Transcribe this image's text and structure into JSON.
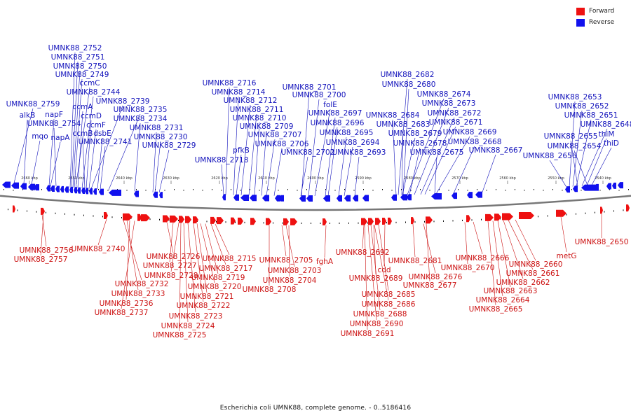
{
  "legend": [
    {
      "label": "Forward",
      "color": "#ee1111"
    },
    {
      "label": "Reverse",
      "color": "#1111ee"
    }
  ],
  "caption": "Escherichia coli UMNK88, complete genome. - 0..5186416",
  "colors": {
    "forward": "#ee1111",
    "reverse": "#1111ee",
    "backbone": "#777777",
    "label_forward": "#cc1111",
    "label_reverse": "#1111bb"
  },
  "scale_labels": [
    "2660 kbp",
    "2650 kbp",
    "2640 kbp",
    "2630 kbp",
    "2620 kbp",
    "2610 kbp",
    "2600 kbp",
    "2590 kbp",
    "2580 kbp",
    "2570 kbp",
    "2560 kbp",
    "2550 kbp",
    "2540 kbp"
  ],
  "reverse_labels": [
    "UMNK88_2752",
    "UMNK88_2751",
    "UMNK88_2750",
    "UMNK88_2749",
    "ccmC",
    "ccmA",
    "UMNK88_2744",
    "ccmD",
    "UMNK88_2739",
    "UMNK88_2759",
    "ccmF",
    "UMNK88_2735",
    "napF",
    "alkB",
    "UMNK88_2754",
    "UMNK88_2734",
    "ccmB",
    "dsbE",
    "UMNK88_2731",
    "mqo",
    "napA",
    "UMNK88_2741",
    "UMNK88_2730",
    "UMNK88_2729",
    "UMNK88_2716",
    "UMNK88_2714",
    "UMNK88_2712",
    "UMNK88_2711",
    "UMNK88_2710",
    "UMNK88_2709",
    "UMNK88_2707",
    "UMNK88_2706",
    "pfkB",
    "UMNK88_2718",
    "UMNK88_2701",
    "UMNK88_2700",
    "folE",
    "UMNK88_2697",
    "UMNK88_2696",
    "UMNK88_2695",
    "UMNK88_2694",
    "UMNK88_2702",
    "UMNK88_2693",
    "UMNK88_2682",
    "UMNK88_2680",
    "UMNK88_2674",
    "UMNK88_2673",
    "UMNK88_2684",
    "UMNK88_2672",
    "UMNK88_2683",
    "UMNK88_2671",
    "UMNK88_2679",
    "UMNK88_2669",
    "UMNK88_2678",
    "UMNK88_2668",
    "UMNK88_2675",
    "UMNK88_2667",
    "UMNK88_2653",
    "UMNK88_2652",
    "UMNK88_2651",
    "UMNK88_2648",
    "UMNK88_2655",
    "thiM",
    "UMNK88_2654",
    "thiD",
    "UMNK88_2656"
  ],
  "forward_labels": [
    "UMNK88_2756",
    "UMNK88_2740",
    "UMNK88_2757",
    "UMNK88_2726",
    "UMNK88_2727",
    "UMNK88_2728",
    "UMNK88_2732",
    "UMNK88_2733",
    "UMNK88_2736",
    "UMNK88_2737",
    "UMNK88_2715",
    "UMNK88_2717",
    "UMNK88_2719",
    "UMNK88_2720",
    "UMNK88_2721",
    "UMNK88_2722",
    "UMNK88_2723",
    "UMNK88_2724",
    "UMNK88_2725",
    "UMNK88_2705",
    "UMNK88_2703",
    "UMNK88_2704",
    "UMNK88_2708",
    "fghA",
    "UMNK88_2692",
    "UMNK88_2689",
    "cdd",
    "UMNK88_2685",
    "UMNK88_2686",
    "UMNK88_2688",
    "UMNK88_2690",
    "UMNK88_2691",
    "UMNK88_2681",
    "UMNK88_2676",
    "UMNK88_2677",
    "UMNK88_2670",
    "UMNK88_2666",
    "UMNK88_2660",
    "UMNK88_2661",
    "UMNK88_2662",
    "UMNK88_2663",
    "UMNK88_2664",
    "UMNK88_2665",
    "metG",
    "UMNK88_2650"
  ]
}
